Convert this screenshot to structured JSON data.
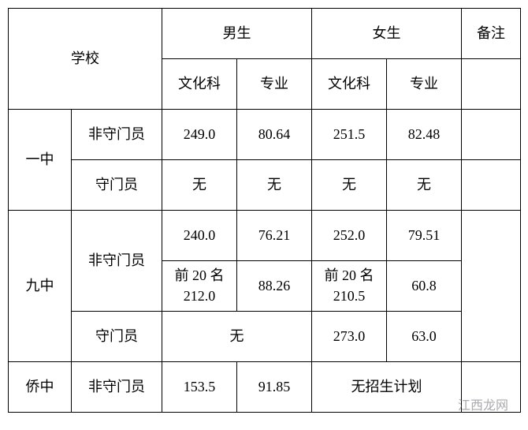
{
  "header": {
    "school": "学校",
    "male": "男生",
    "female": "女生",
    "remark": "备注",
    "culture": "文化科",
    "major": "专业"
  },
  "schools": {
    "yz": {
      "name": "一中",
      "r0": {
        "cat": "非守门员",
        "m_cul": "249.0",
        "m_maj": "80.64",
        "f_cul": "251.5",
        "f_maj": "82.48"
      },
      "r1": {
        "cat": "守门员",
        "m_cul": "无",
        "m_maj": "无",
        "f_cul": "无",
        "f_maj": "无"
      }
    },
    "jz": {
      "name": "九中",
      "r0": {
        "cat": "非守门员",
        "m_cul": "240.0",
        "m_maj": "76.21",
        "f_cul": "252.0",
        "f_maj": "79.51"
      },
      "r1": {
        "m_cul": "前 20 名 212.0",
        "m_maj": "88.26",
        "f_cul": "前 20 名 210.5",
        "f_maj": "60.8"
      },
      "r2": {
        "cat": "守门员",
        "mm": "无",
        "f_cul": "273.0",
        "f_maj": "63.0"
      }
    },
    "qz": {
      "name": "侨中",
      "r0": {
        "cat": "非守门员",
        "m_cul": "153.5",
        "m_maj": "91.85",
        "ff": "无招生计划"
      }
    }
  },
  "watermark": "江西龙网"
}
